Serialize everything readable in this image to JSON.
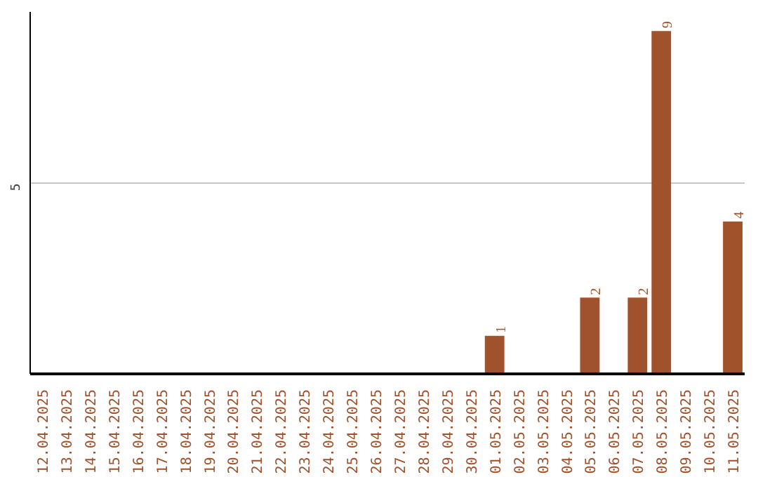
{
  "chart_data": {
    "type": "bar",
    "categories": [
      "12.04.2025",
      "13.04.2025",
      "14.04.2025",
      "15.04.2025",
      "16.04.2025",
      "17.04.2025",
      "18.04.2025",
      "19.04.2025",
      "20.04.2025",
      "21.04.2025",
      "22.04.2025",
      "23.04.2025",
      "24.04.2025",
      "25.04.2025",
      "26.04.2025",
      "27.04.2025",
      "28.04.2025",
      "29.04.2025",
      "30.04.2025",
      "01.05.2025",
      "02.05.2025",
      "03.05.2025",
      "04.05.2025",
      "05.05.2025",
      "06.05.2025",
      "07.05.2025",
      "08.05.2025",
      "09.05.2025",
      "10.05.2025",
      "11.05.2025"
    ],
    "values": [
      null,
      null,
      null,
      null,
      null,
      null,
      null,
      null,
      null,
      null,
      null,
      null,
      null,
      null,
      null,
      null,
      null,
      null,
      null,
      1,
      null,
      null,
      null,
      2,
      null,
      2,
      9,
      null,
      null,
      4
    ],
    "data_labels": true,
    "color": "#a0522d",
    "ylim": [
      0,
      9.5
    ],
    "yticks": [
      5
    ],
    "grid": "y"
  }
}
